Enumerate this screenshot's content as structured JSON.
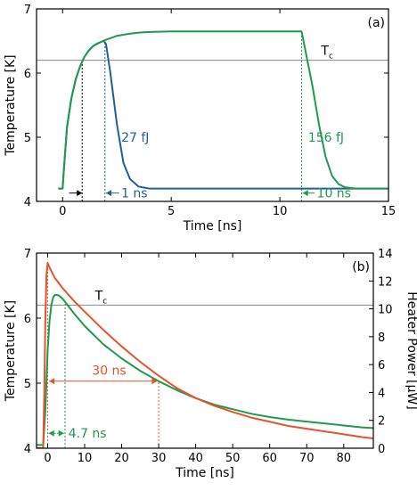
{
  "colors": {
    "blue": "#1f5f95",
    "green": "#1e9a4e",
    "red": "#e4532d",
    "gray": "#8a8a8a",
    "black": "#000000"
  },
  "chart_data": [
    {
      "type": "line",
      "panel_label": "(a)",
      "xlabel": "Time [ns]",
      "ylabel": "Temperature [K]",
      "xlim": [
        -1.2,
        15
      ],
      "ylim": [
        4,
        7
      ],
      "xticks": [
        0,
        5,
        10,
        15
      ],
      "yticks": [
        4,
        5,
        6,
        7
      ],
      "tc_line": {
        "y": 6.2,
        "label": "T",
        "sub": "c"
      },
      "series": [
        {
          "color": "blue",
          "x": [
            -0.2,
            0,
            0.05,
            0.2,
            0.4,
            0.6,
            0.8,
            1.0,
            1.2,
            1.4,
            1.6,
            1.8,
            1.9,
            2.0,
            2.2,
            2.5,
            2.8,
            3.1,
            3.5,
            4.0,
            15.0
          ],
          "y": [
            4.2,
            4.2,
            4.45,
            5.15,
            5.6,
            5.9,
            6.1,
            6.25,
            6.35,
            6.42,
            6.46,
            6.49,
            6.5,
            6.45,
            6.0,
            5.2,
            4.6,
            4.35,
            4.23,
            4.2,
            4.2
          ]
        },
        {
          "color": "green",
          "x": [
            -0.2,
            0,
            0.05,
            0.2,
            0.4,
            0.6,
            0.8,
            1.0,
            1.2,
            1.4,
            1.6,
            1.8,
            2.0,
            2.5,
            3.0,
            3.5,
            4.0,
            5.0,
            6.0,
            7.0,
            8.0,
            9.0,
            10.0,
            11.0,
            11.5,
            11.8,
            12.1,
            12.4,
            12.7,
            13.0,
            13.5,
            15.0
          ],
          "y": [
            4.2,
            4.2,
            4.45,
            5.15,
            5.6,
            5.9,
            6.1,
            6.25,
            6.35,
            6.42,
            6.46,
            6.49,
            6.52,
            6.58,
            6.61,
            6.63,
            6.64,
            6.65,
            6.65,
            6.65,
            6.65,
            6.65,
            6.65,
            6.65,
            5.8,
            5.2,
            4.7,
            4.4,
            4.27,
            4.22,
            4.2,
            4.2
          ]
        }
      ],
      "vlines": [
        {
          "x": 0.9,
          "y0": 4,
          "y1": 6.2,
          "color": "black"
        },
        {
          "x": 1.95,
          "y0": 4,
          "y1": 6.5,
          "color": "blue"
        },
        {
          "x": 11.0,
          "y0": 4,
          "y1": 6.65,
          "color": "green"
        }
      ],
      "arrows": [
        {
          "x_from": 0.3,
          "x_to": 0.9,
          "y": 4.13,
          "color": "black"
        },
        {
          "x_from": 2.6,
          "x_to": 2.0,
          "y": 4.13,
          "color": "blue"
        },
        {
          "x_from": 11.6,
          "x_to": 11.05,
          "y": 4.13,
          "color": "green"
        }
      ],
      "annotations": [
        {
          "text": "27 fJ",
          "x": 2.7,
          "y": 5.0,
          "color": "blue"
        },
        {
          "text": "156 fJ",
          "x": 11.3,
          "y": 5.0,
          "color": "green"
        },
        {
          "text": "1 ns",
          "x": 2.7,
          "y": 4.13,
          "color": "blue"
        },
        {
          "text": "10 ns",
          "x": 11.7,
          "y": 4.13,
          "color": "green"
        }
      ]
    },
    {
      "type": "line",
      "panel_label": "(b)",
      "xlabel": "Time [ns]",
      "ylabel": "Temperature [K]",
      "ylabel_right": "Heater Power [µW]",
      "xlim": [
        -3,
        88
      ],
      "ylim": [
        4,
        7
      ],
      "ylim_right": [
        0,
        14
      ],
      "xticks": [
        0,
        10,
        20,
        30,
        40,
        50,
        60,
        70,
        80
      ],
      "yticks": [
        4,
        5,
        6,
        7
      ],
      "yticks_right": [
        0,
        2,
        4,
        6,
        8,
        10,
        12,
        14
      ],
      "tc_line": {
        "y": 6.2,
        "label": "T",
        "sub": "c"
      },
      "series": [
        {
          "color": "green",
          "axis": "left",
          "x": [
            -3,
            -1.2,
            -0.6,
            0,
            0.5,
            1,
            1.5,
            2,
            3,
            4,
            5,
            7,
            10,
            15,
            20,
            25,
            30,
            35,
            40,
            45,
            50,
            55,
            60,
            65,
            70,
            75,
            80,
            85,
            88
          ],
          "y": [
            4.05,
            4.05,
            4.6,
            5.5,
            5.95,
            6.2,
            6.32,
            6.36,
            6.35,
            6.3,
            6.23,
            6.08,
            5.88,
            5.6,
            5.38,
            5.19,
            5.03,
            4.89,
            4.77,
            4.67,
            4.6,
            4.53,
            4.48,
            4.44,
            4.41,
            4.38,
            4.35,
            4.32,
            4.31
          ]
        },
        {
          "color": "red",
          "axis": "right",
          "x": [
            -3,
            -1.2,
            -0.9,
            -0.6,
            -0.3,
            0,
            0.3,
            1,
            2,
            4,
            7,
            10,
            15,
            20,
            25,
            30,
            35,
            40,
            45,
            50,
            55,
            60,
            65,
            70,
            75,
            80,
            85,
            88
          ],
          "y": [
            0,
            0,
            4,
            9.5,
            12.5,
            13.3,
            13.1,
            12.7,
            12.2,
            11.5,
            10.6,
            9.8,
            8.5,
            7.3,
            6.2,
            5.2,
            4.3,
            3.6,
            3.05,
            2.6,
            2.2,
            1.9,
            1.6,
            1.4,
            1.2,
            1.0,
            0.8,
            0.7
          ]
        }
      ],
      "vlines": [
        {
          "x": 0,
          "y0": 4,
          "y1": 6.85,
          "color": "red"
        },
        {
          "x": 4.7,
          "y0": 4,
          "y1": 6.24,
          "color": "green"
        },
        {
          "x": 30,
          "y0": 4,
          "y1": 5.03,
          "color": "red"
        }
      ],
      "arrows": [
        {
          "x_from": 15,
          "x_to": 0.4,
          "y": 5.03,
          "color": "red"
        },
        {
          "x_from": 15,
          "x_to": 29.6,
          "y": 5.03,
          "color": "red"
        },
        {
          "x_from": 2.2,
          "x_to": 0.3,
          "y": 4.23,
          "color": "green"
        },
        {
          "x_from": 2.5,
          "x_to": 4.4,
          "y": 4.23,
          "color": "green"
        }
      ],
      "annotations": [
        {
          "text": "30 ns",
          "x": 12,
          "y": 5.2,
          "color": "red"
        },
        {
          "text": "4.7 ns",
          "x": 5.6,
          "y": 4.23,
          "color": "green"
        }
      ]
    }
  ]
}
